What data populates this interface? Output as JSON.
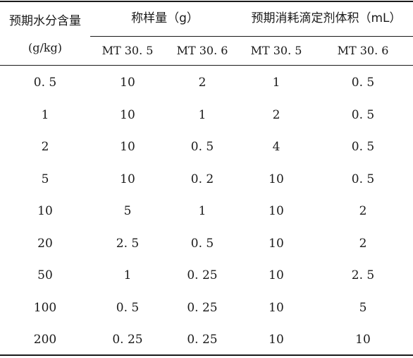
{
  "headers": {
    "col1_line1": "预期水分含量",
    "col1_line2": "(g/kg)",
    "group1": "称样量（g）",
    "group2": "预期消耗滴定剂体积（mL）"
  },
  "subheaders": [
    "MT 30. 5",
    "MT 30. 6",
    "MT 30. 5",
    "MT 30. 6"
  ],
  "rows": [
    [
      "0. 5",
      "10",
      "2",
      "1",
      "0. 5"
    ],
    [
      "1",
      "10",
      "1",
      "2",
      "0. 5"
    ],
    [
      "2",
      "10",
      "0. 5",
      "4",
      "0. 5"
    ],
    [
      "5",
      "10",
      "0. 2",
      "10",
      "0. 5"
    ],
    [
      "10",
      "5",
      "1",
      "10",
      "2"
    ],
    [
      "20",
      "2. 5",
      "0. 5",
      "10",
      "2"
    ],
    [
      "50",
      "1",
      "0. 25",
      "10",
      "2. 5"
    ],
    [
      "100",
      "0. 5",
      "0. 25",
      "10",
      "5"
    ],
    [
      "200",
      "0. 25",
      "0. 25",
      "10",
      "10"
    ]
  ]
}
